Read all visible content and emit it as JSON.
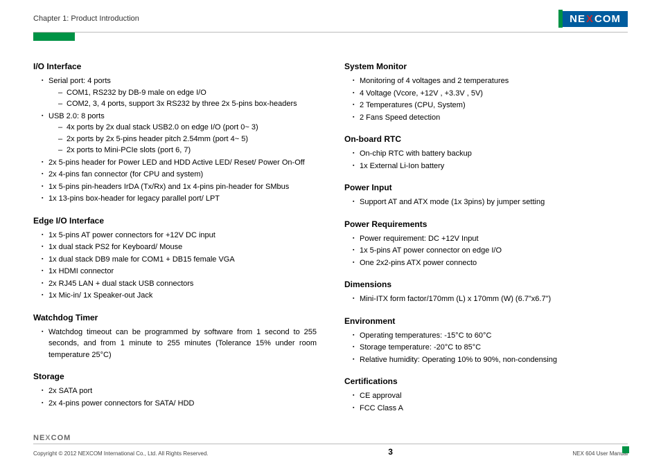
{
  "header": {
    "chapter": "Chapter 1: Product Introduction",
    "logo_text_1": "NE",
    "logo_text_x": "X",
    "logo_text_2": "COM"
  },
  "left_col": {
    "s1": {
      "title": "I/O Interface",
      "i1": "Serial port: 4 ports",
      "i1a": "COM1, RS232 by DB-9 male on edge I/O",
      "i1b": "COM2, 3, 4 ports, support 3x RS232 by three 2x 5-pins box-headers",
      "i2": "USB 2.0: 8 ports",
      "i2a": "4x ports by 2x dual stack USB2.0 on edge I/O (port 0~ 3)",
      "i2b": "2x ports by 2x 5-pins header pitch 2.54mm (port 4~ 5)",
      "i2c": "2x ports to Mini-PCIe slots (port 6, 7)",
      "i3": "2x 5-pins header for Power LED and HDD Active LED/ Reset/ Power On-Off",
      "i4": "2x 4-pins fan connector (for CPU and system)",
      "i5": "1x 5-pins pin-headers IrDA (Tx/Rx) and 1x 4-pins pin-header for SMbus",
      "i6": "1x 13-pins box-header for legacy parallel port/ LPT"
    },
    "s2": {
      "title": "Edge I/O Interface",
      "i1": "1x 5-pins AT power connectors for +12V DC input",
      "i2": "1x dual stack PS2 for Keyboard/ Mouse",
      "i3": "1x dual stack DB9 male for COM1 + DB15 female VGA",
      "i4": "1x HDMI connector",
      "i5": "2x RJ45 LAN + dual stack USB connectors",
      "i6": "1x Mic-in/ 1x Speaker-out Jack"
    },
    "s3": {
      "title": "Watchdog Timer",
      "i1": "Watchdog timeout can be programmed by software from 1 second to 255 seconds, and from 1 minute to 255 minutes (Tolerance 15% under room temperature 25°C)"
    },
    "s4": {
      "title": "Storage",
      "i1": "2x SATA port",
      "i2": "2x 4-pins power connectors for SATA/ HDD"
    }
  },
  "right_col": {
    "s1": {
      "title": "System Monitor",
      "i1": "Monitoring of 4 voltages and 2 temperatures",
      "i2": "4 Voltage (Vcore, +12V , +3.3V , 5V)",
      "i3": "2 Temperatures (CPU, System)",
      "i4": "2 Fans Speed detection"
    },
    "s2": {
      "title": "On-board RTC",
      "i1": "On-chip RTC with battery backup",
      "i2": "1x External Li-Ion battery"
    },
    "s3": {
      "title": "Power Input",
      "i1": "Support AT and ATX mode (1x 3pins) by jumper setting"
    },
    "s4": {
      "title": "Power Requirements",
      "i1": "Power requirement: DC +12V Input",
      "i2": "1x 5-pins AT power connector on edge I/O",
      "i3": "One 2x2-pins ATX power connecto"
    },
    "s5": {
      "title": "Dimensions",
      "i1": "Mini-ITX form factor/170mm (L) x 170mm (W) (6.7\"x6.7\")"
    },
    "s6": {
      "title": "Environment",
      "i1": "Operating temperatures: -15°C to 60°C",
      "i2": "Storage temperature: -20°C to 85°C",
      "i3": "Relative humidity: Operating 10% to 90%, non-condensing"
    },
    "s7": {
      "title": "Certifications",
      "i1": "CE approval",
      "i2": "FCC Class A"
    }
  },
  "footer": {
    "logo_1": "NE",
    "logo_x": "X",
    "logo_2": "COM",
    "copyright": "Copyright © 2012 NEXCOM International Co., Ltd. All Rights Reserved.",
    "page": "3",
    "manual": "NEX 604 User Manual"
  },
  "colors": {
    "green": "#009245",
    "blue": "#005c9e",
    "red": "#c1272d"
  }
}
